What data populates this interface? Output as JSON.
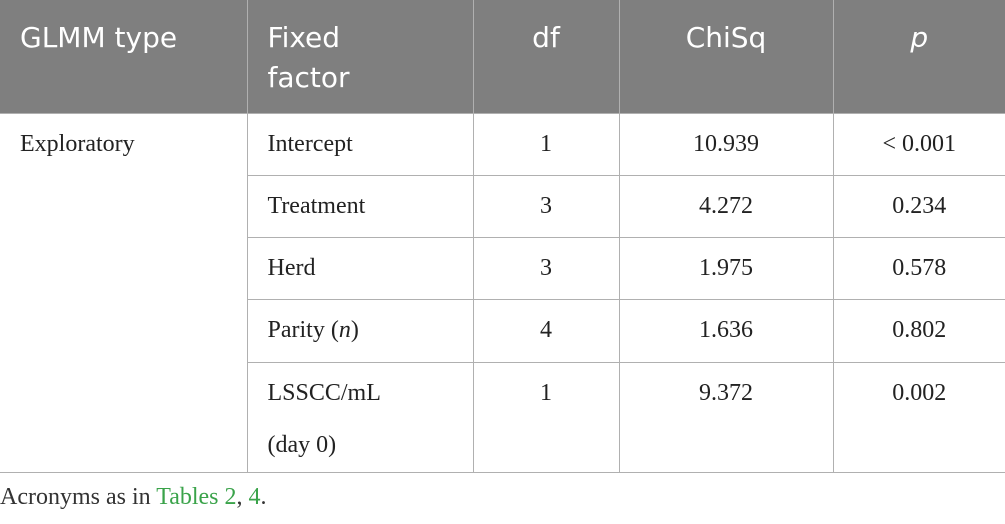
{
  "table": {
    "header": [
      "GLMM type",
      [
        "Fixed",
        "factor"
      ],
      "df",
      "ChiSq",
      "p"
    ],
    "rows": [
      {
        "glmm_type": "Exploratory",
        "fixed_factor": [
          "Intercept"
        ],
        "df": 1,
        "chisq": 10.939,
        "p": "< 0.001"
      },
      {
        "fixed_factor": [
          "Treatment"
        ],
        "df": 3,
        "chisq": 4.272,
        "p": 0.234
      },
      {
        "fixed_factor": [
          "Herd"
        ],
        "df": 3,
        "chisq": 1.975,
        "p": 0.578
      },
      {
        "fixed_factor": [
          "Parity (",
          "n",
          ")"
        ],
        "df": 4,
        "chisq": 1.636,
        "p": 0.802
      },
      {
        "fixed_factor": [
          "LSSCC/mL",
          "(day 0)"
        ],
        "df": 1,
        "chisq": 9.372,
        "p": 0.002
      }
    ]
  },
  "footnote": [
    "Acronyms as in ",
    "Tables 2",
    ", ",
    "4",
    "."
  ]
}
